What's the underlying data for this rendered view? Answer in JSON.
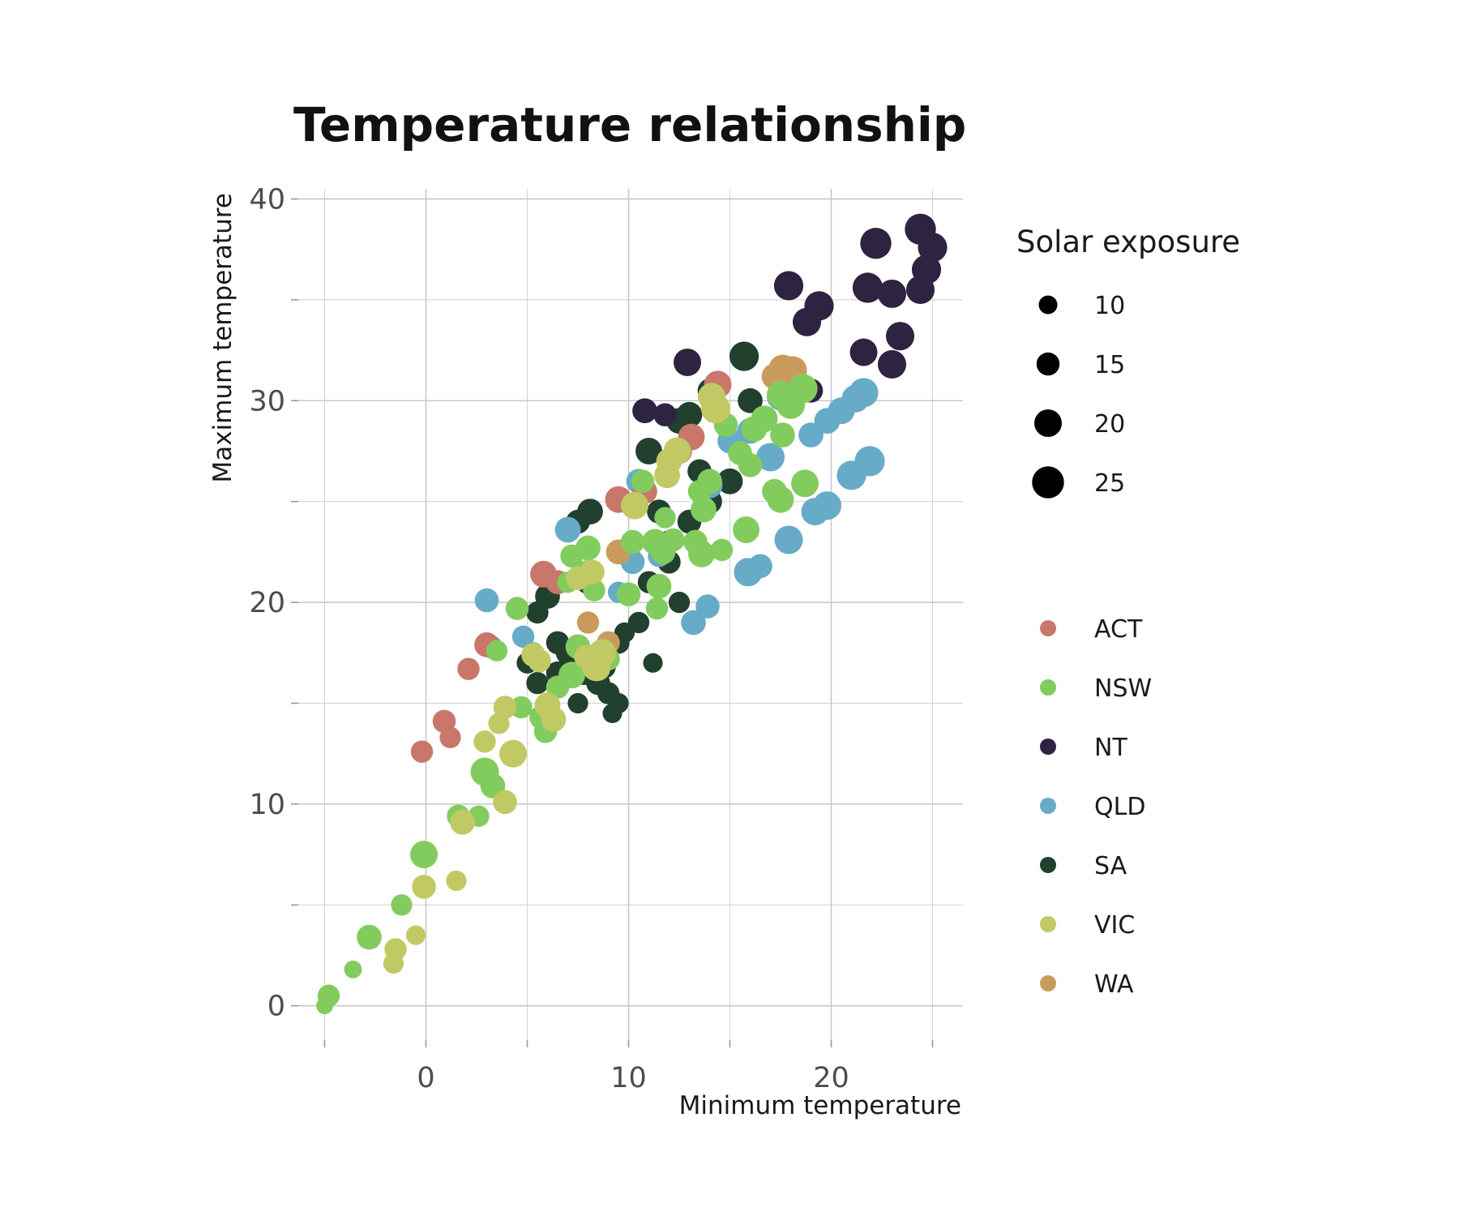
{
  "chart_data": {
    "type": "scatter",
    "title": "Temperature relationship",
    "xlabel": "Minimum temperature",
    "ylabel": "Maximum temperature",
    "xlim": [
      -6.3,
      26.5
    ],
    "ylim": [
      -1.7,
      40.5
    ],
    "x_ticks": [
      0,
      10,
      20
    ],
    "y_ticks": [
      0,
      10,
      20,
      30,
      40
    ],
    "grid": true,
    "size_legend": {
      "title": "Solar exposure",
      "values": [
        10,
        15,
        20,
        25
      ],
      "labels": [
        "10",
        "15",
        "20",
        "25"
      ]
    },
    "color_legend": {
      "placement": "right",
      "entries": [
        {
          "name": "ACT",
          "color": "#c8776a"
        },
        {
          "name": "NSW",
          "color": "#82cc5e"
        },
        {
          "name": "NT",
          "color": "#2e2340"
        },
        {
          "name": "QLD",
          "color": "#68abc8"
        },
        {
          "name": "SA",
          "color": "#22402e"
        },
        {
          "name": "VIC",
          "color": "#c1c964"
        },
        {
          "name": "WA",
          "color": "#c89b5c"
        }
      ]
    },
    "series": [
      {
        "name": "SA",
        "color": "#22402e",
        "points": [
          [
            8.1,
            24.5,
            18
          ],
          [
            7.5,
            24.0,
            16
          ],
          [
            6.0,
            20.3,
            17
          ],
          [
            5.5,
            19.5,
            14
          ],
          [
            8.0,
            21.0,
            16
          ],
          [
            9.5,
            18.0,
            14
          ],
          [
            9.8,
            18.5,
            12
          ],
          [
            11.2,
            17.0,
            11
          ],
          [
            7.0,
            17.5,
            16
          ],
          [
            8.5,
            16.0,
            16
          ],
          [
            9.0,
            15.5,
            14
          ],
          [
            9.2,
            14.5,
            11
          ],
          [
            9.5,
            15.0,
            12
          ],
          [
            6.5,
            16.5,
            15
          ],
          [
            7.5,
            15.0,
            12
          ],
          [
            5.0,
            17.0,
            13
          ],
          [
            5.5,
            16.0,
            14
          ],
          [
            6.0,
            14.0,
            12
          ],
          [
            6.5,
            18.0,
            15
          ],
          [
            7.8,
            16.5,
            16
          ],
          [
            8.8,
            16.8,
            15
          ],
          [
            11.5,
            24.5,
            16
          ],
          [
            12.0,
            23.0,
            15
          ],
          [
            13.0,
            24.0,
            16
          ],
          [
            14.0,
            25.0,
            17
          ],
          [
            15.0,
            26.0,
            18
          ],
          [
            13.5,
            26.5,
            16
          ],
          [
            11.0,
            27.5,
            19
          ],
          [
            12.5,
            29.0,
            18
          ],
          [
            13.0,
            29.3,
            18
          ],
          [
            15.7,
            32.2,
            22
          ],
          [
            16.0,
            30.0,
            17
          ],
          [
            14.0,
            30.5,
            16
          ],
          [
            12.0,
            22.0,
            15
          ],
          [
            11.0,
            21.0,
            14
          ],
          [
            12.5,
            20.0,
            13
          ],
          [
            10.5,
            19.0,
            13
          ]
        ]
      },
      {
        "name": "NT",
        "color": "#2e2340",
        "points": [
          [
            24.4,
            38.5,
            24
          ],
          [
            25.0,
            37.6,
            22
          ],
          [
            22.2,
            37.8,
            24
          ],
          [
            24.7,
            36.5,
            22
          ],
          [
            21.8,
            35.6,
            23
          ],
          [
            24.4,
            35.5,
            21
          ],
          [
            23.0,
            35.3,
            21
          ],
          [
            17.9,
            35.7,
            22
          ],
          [
            19.4,
            34.7,
            22
          ],
          [
            18.8,
            33.9,
            21
          ],
          [
            23.4,
            33.2,
            21
          ],
          [
            21.6,
            32.4,
            20
          ],
          [
            23.0,
            31.8,
            21
          ],
          [
            12.9,
            31.9,
            20
          ],
          [
            18.0,
            31.0,
            17
          ],
          [
            19.0,
            30.5,
            16
          ],
          [
            10.8,
            29.5,
            17
          ],
          [
            11.8,
            29.3,
            15
          ]
        ]
      },
      {
        "name": "QLD",
        "color": "#68abc8",
        "points": [
          [
            21.6,
            30.4,
            22
          ],
          [
            21.2,
            30.1,
            20
          ],
          [
            20.5,
            29.5,
            19
          ],
          [
            19.8,
            29.0,
            18
          ],
          [
            19.0,
            28.3,
            17
          ],
          [
            17.5,
            30.2,
            20
          ],
          [
            17.0,
            27.2,
            21
          ],
          [
            16.0,
            28.5,
            18
          ],
          [
            15.0,
            28.0,
            17
          ],
          [
            21.9,
            27.0,
            23
          ],
          [
            21.0,
            26.3,
            22
          ],
          [
            19.8,
            24.8,
            21
          ],
          [
            19.2,
            24.5,
            20
          ],
          [
            17.9,
            23.1,
            21
          ],
          [
            16.5,
            21.8,
            16
          ],
          [
            15.9,
            21.5,
            21
          ],
          [
            14.0,
            25.8,
            18
          ],
          [
            13.9,
            19.8,
            16
          ],
          [
            13.2,
            19.0,
            17
          ],
          [
            10.5,
            26.0,
            17
          ],
          [
            10.2,
            22.0,
            16
          ],
          [
            9.5,
            20.5,
            13
          ],
          [
            7.0,
            23.6,
            18
          ],
          [
            3.0,
            20.1,
            16
          ],
          [
            4.8,
            18.3,
            14
          ],
          [
            3.2,
            17.8,
            15
          ],
          [
            5.3,
            17.5,
            13
          ],
          [
            11.5,
            22.3,
            14
          ]
        ]
      },
      {
        "name": "WA",
        "color": "#c89b5c",
        "points": [
          [
            18.1,
            31.5,
            21
          ],
          [
            17.6,
            31.6,
            20
          ],
          [
            17.2,
            31.2,
            18
          ],
          [
            9.5,
            22.5,
            17
          ],
          [
            8.0,
            19.0,
            14
          ],
          [
            9.0,
            18.0,
            15
          ]
        ]
      },
      {
        "name": "ACT",
        "color": "#c8776a",
        "points": [
          [
            14.4,
            30.8,
            20
          ],
          [
            13.1,
            28.2,
            19
          ],
          [
            12.5,
            27.5,
            18
          ],
          [
            9.5,
            25.1,
            19
          ],
          [
            10.8,
            25.5,
            17
          ],
          [
            5.8,
            21.4,
            19
          ],
          [
            6.5,
            21.0,
            16
          ],
          [
            3.0,
            17.9,
            17
          ],
          [
            2.1,
            16.7,
            14
          ],
          [
            0.9,
            14.1,
            15
          ],
          [
            1.2,
            13.3,
            13
          ],
          [
            -0.2,
            12.6,
            14
          ]
        ]
      },
      {
        "name": "NSW",
        "color": "#82cc5e",
        "points": [
          [
            18.6,
            30.6,
            22
          ],
          [
            18.0,
            29.8,
            21
          ],
          [
            17.5,
            30.3,
            20
          ],
          [
            16.7,
            29.1,
            19
          ],
          [
            16.2,
            28.6,
            18
          ],
          [
            17.6,
            28.3,
            17
          ],
          [
            15.5,
            27.4,
            16
          ],
          [
            14.8,
            28.8,
            16
          ],
          [
            18.7,
            25.9,
            20
          ],
          [
            17.5,
            25.1,
            19
          ],
          [
            17.2,
            25.5,
            17
          ],
          [
            16.0,
            26.8,
            16
          ],
          [
            14.0,
            26.0,
            17
          ],
          [
            13.5,
            25.5,
            15
          ],
          [
            15.8,
            23.6,
            19
          ],
          [
            13.7,
            24.6,
            18
          ],
          [
            13.6,
            22.4,
            19
          ],
          [
            13.3,
            23.0,
            16
          ],
          [
            14.6,
            22.6,
            14
          ],
          [
            11.3,
            23.0,
            18
          ],
          [
            11.7,
            22.5,
            17
          ],
          [
            12.2,
            23.1,
            15
          ],
          [
            10.2,
            23.0,
            16
          ],
          [
            11.5,
            20.8,
            17
          ],
          [
            11.4,
            19.7,
            14
          ],
          [
            10.0,
            20.4,
            16
          ],
          [
            11.8,
            24.2,
            13
          ],
          [
            10.7,
            26.0,
            15
          ],
          [
            8.0,
            22.7,
            17
          ],
          [
            7.2,
            22.3,
            15
          ],
          [
            8.0,
            21.5,
            16
          ],
          [
            8.3,
            20.6,
            14
          ],
          [
            7.0,
            21.0,
            13
          ],
          [
            4.5,
            19.7,
            15
          ],
          [
            7.5,
            17.8,
            17
          ],
          [
            7.2,
            16.4,
            19
          ],
          [
            8.5,
            16.7,
            16
          ],
          [
            9.0,
            17.2,
            15
          ],
          [
            6.5,
            15.8,
            15
          ],
          [
            5.7,
            14.3,
            16
          ],
          [
            5.9,
            13.6,
            15
          ],
          [
            4.7,
            14.8,
            14
          ],
          [
            3.5,
            17.6,
            13
          ],
          [
            2.9,
            11.6,
            21
          ],
          [
            3.3,
            10.9,
            17
          ],
          [
            1.6,
            9.4,
            15
          ],
          [
            2.6,
            9.4,
            13
          ],
          [
            -0.1,
            7.5,
            20
          ],
          [
            -1.2,
            5.0,
            13
          ],
          [
            -2.8,
            3.4,
            17
          ],
          [
            -4.8,
            0.5,
            14
          ],
          [
            -3.6,
            1.8,
            9
          ],
          [
            -5.0,
            0.0,
            8
          ]
        ]
      },
      {
        "name": "VIC",
        "color": "#c1c964",
        "points": [
          [
            14.3,
            29.6,
            22
          ],
          [
            14.1,
            30.2,
            20
          ],
          [
            12.4,
            27.5,
            20
          ],
          [
            12.0,
            27.0,
            18
          ],
          [
            11.9,
            26.3,
            18
          ],
          [
            10.3,
            24.8,
            20
          ],
          [
            8.2,
            21.5,
            17
          ],
          [
            7.5,
            21.2,
            16
          ],
          [
            8.7,
            17.5,
            20
          ],
          [
            8.4,
            16.8,
            21
          ],
          [
            7.9,
            17.3,
            16
          ],
          [
            5.3,
            17.4,
            16
          ],
          [
            5.6,
            17.1,
            15
          ],
          [
            6.0,
            14.9,
            18
          ],
          [
            6.3,
            14.2,
            17
          ],
          [
            3.9,
            14.8,
            15
          ],
          [
            3.6,
            14.0,
            13
          ],
          [
            4.3,
            12.5,
            20
          ],
          [
            2.9,
            13.1,
            14
          ],
          [
            3.9,
            10.1,
            16
          ],
          [
            1.8,
            9.1,
            17
          ],
          [
            -0.1,
            5.9,
            16
          ],
          [
            1.5,
            6.2,
            12
          ],
          [
            -1.5,
            2.8,
            14
          ],
          [
            -0.5,
            3.5,
            11
          ],
          [
            -1.6,
            2.1,
            12
          ]
        ]
      }
    ]
  }
}
